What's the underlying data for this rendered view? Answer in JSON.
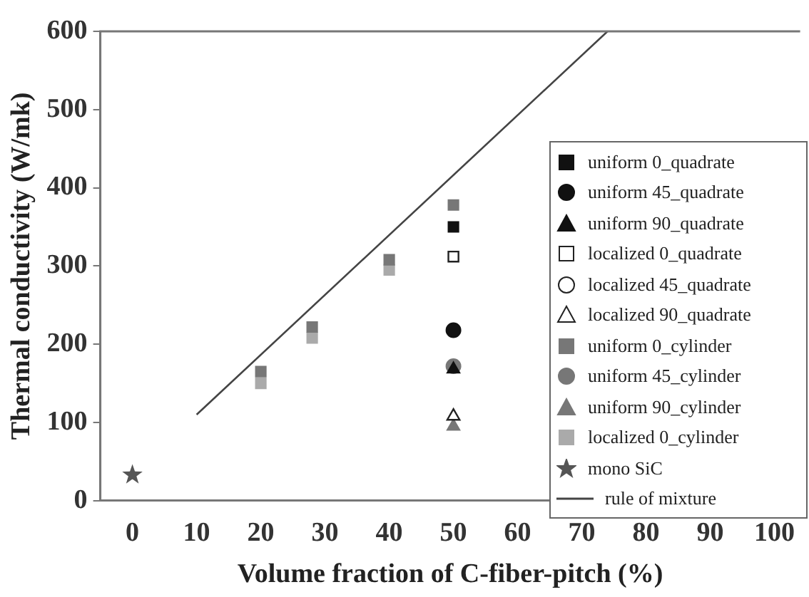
{
  "chart_data": {
    "type": "scatter",
    "xlabel": "Volume fraction of C-fiber-pitch (%)",
    "ylabel": "Thermal conductivity (W/mk)",
    "xlim": [
      -5,
      104
    ],
    "xticks": [
      0,
      10,
      20,
      30,
      40,
      50,
      60,
      70,
      80,
      90,
      100
    ],
    "ylim": [
      0,
      600
    ],
    "yticks": [
      0,
      100,
      200,
      300,
      400,
      500,
      600
    ],
    "grid": false,
    "legend": "right",
    "series": [
      {
        "name": "uniform 0_quadrate",
        "color": "#111111",
        "marker": "square",
        "x": [
          50
        ],
        "values": [
          350
        ]
      },
      {
        "name": "uniform 45_quadrate",
        "color": "#111111",
        "marker": "circle",
        "x": [
          50
        ],
        "values": [
          218
        ]
      },
      {
        "name": "uniform 90_quadrate",
        "color": "#111111",
        "marker": "triangle",
        "x": [
          50
        ],
        "values": [
          168
        ]
      },
      {
        "name": "localized 0_quadrate",
        "color": "#ffffff",
        "marker": "square",
        "x": [
          50
        ],
        "values": [
          312
        ]
      },
      {
        "name": "localized 45_quadrate",
        "color": "#ffffff",
        "marker": "circle"
      },
      {
        "name": "localized 90_quadrate",
        "color": "#ffffff",
        "marker": "triangle",
        "x": [
          50
        ],
        "values": [
          108
        ]
      },
      {
        "name": "uniform 0_cylinder",
        "color": "#777777",
        "marker": "square",
        "x": [
          20,
          28,
          40,
          50
        ],
        "values": [
          165,
          222,
          308,
          378
        ]
      },
      {
        "name": "uniform 45_cylinder",
        "color": "#777777",
        "marker": "circle",
        "x": [
          50
        ],
        "values": [
          172
        ]
      },
      {
        "name": "uniform 90_cylinder",
        "color": "#777777",
        "marker": "triangle",
        "x": [
          50
        ],
        "values": [
          95
        ]
      },
      {
        "name": "localized 0_cylinder",
        "color": "#aaaaaa",
        "marker": "square",
        "x": [
          20,
          28,
          40
        ],
        "values": [
          150,
          208,
          295
        ]
      },
      {
        "name": "mono SiC",
        "color": "#555555",
        "marker": "star",
        "x": [
          0
        ],
        "values": [
          33
        ]
      },
      {
        "name": "rule of mixture",
        "type": "line",
        "color": "#444444",
        "marker": "none",
        "line_style": "solid",
        "x": [
          10,
          74
        ],
        "values": [
          110,
          600
        ]
      }
    ]
  }
}
